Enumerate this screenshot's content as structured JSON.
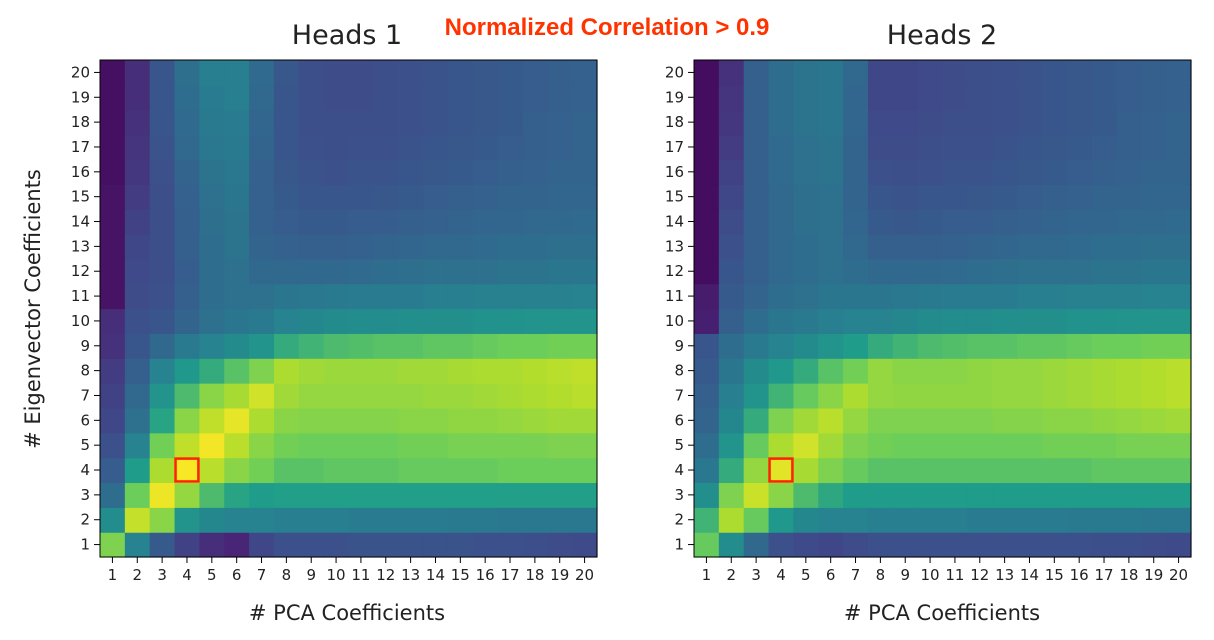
{
  "annotation": {
    "text": "Normalized Correlation > 0.9",
    "color": "#ff3300"
  },
  "colormap": [
    "#440154",
    "#482777",
    "#3f4a8a",
    "#31678e",
    "#26838f",
    "#1f9d8a",
    "#6cce5a",
    "#b6de2b",
    "#fee825"
  ],
  "highlight_color": "#ff2200",
  "chart_data": [
    {
      "type": "heatmap",
      "title": "Heads 1",
      "xlabel": "# PCA Coefficients",
      "ylabel": "# Eigenvector Coefficients",
      "x": [
        1,
        2,
        3,
        4,
        5,
        6,
        7,
        8,
        9,
        10,
        11,
        12,
        13,
        14,
        15,
        16,
        17,
        18,
        19,
        20
      ],
      "y": [
        1,
        2,
        3,
        4,
        5,
        6,
        7,
        8,
        9,
        10,
        11,
        12,
        13,
        14,
        15,
        16,
        17,
        18,
        19,
        20
      ],
      "value_range": [
        0,
        1
      ],
      "highlight": {
        "x": 4,
        "y": 4
      },
      "z_rows_from_y1": [
        [
          0.78,
          0.5,
          0.32,
          0.22,
          0.15,
          0.12,
          0.24,
          0.28,
          0.28,
          0.28,
          0.29,
          0.29,
          0.29,
          0.29,
          0.29,
          0.28,
          0.28,
          0.27,
          0.26,
          0.25
        ],
        [
          0.55,
          0.9,
          0.8,
          0.58,
          0.52,
          0.5,
          0.5,
          0.48,
          0.48,
          0.48,
          0.47,
          0.47,
          0.47,
          0.47,
          0.46,
          0.46,
          0.45,
          0.45,
          0.45,
          0.45
        ],
        [
          0.4,
          0.75,
          0.97,
          0.82,
          0.7,
          0.64,
          0.62,
          0.63,
          0.63,
          0.63,
          0.63,
          0.63,
          0.63,
          0.63,
          0.63,
          0.63,
          0.63,
          0.63,
          0.63,
          0.63
        ],
        [
          0.33,
          0.62,
          0.86,
          0.99,
          0.88,
          0.8,
          0.76,
          0.72,
          0.72,
          0.73,
          0.73,
          0.73,
          0.74,
          0.74,
          0.74,
          0.74,
          0.75,
          0.75,
          0.75,
          0.75
        ],
        [
          0.28,
          0.5,
          0.76,
          0.89,
          0.98,
          0.88,
          0.8,
          0.76,
          0.75,
          0.75,
          0.75,
          0.75,
          0.76,
          0.76,
          0.77,
          0.77,
          0.77,
          0.77,
          0.78,
          0.78
        ],
        [
          0.24,
          0.42,
          0.64,
          0.8,
          0.89,
          0.96,
          0.86,
          0.8,
          0.79,
          0.79,
          0.79,
          0.79,
          0.8,
          0.8,
          0.81,
          0.81,
          0.82,
          0.83,
          0.84,
          0.84
        ],
        [
          0.22,
          0.38,
          0.58,
          0.7,
          0.8,
          0.85,
          0.92,
          0.84,
          0.82,
          0.82,
          0.82,
          0.82,
          0.82,
          0.83,
          0.83,
          0.84,
          0.85,
          0.86,
          0.87,
          0.88
        ],
        [
          0.2,
          0.34,
          0.5,
          0.6,
          0.66,
          0.72,
          0.78,
          0.86,
          0.84,
          0.83,
          0.83,
          0.83,
          0.84,
          0.84,
          0.85,
          0.86,
          0.86,
          0.87,
          0.88,
          0.89
        ],
        [
          0.16,
          0.3,
          0.38,
          0.46,
          0.5,
          0.54,
          0.58,
          0.66,
          0.68,
          0.7,
          0.71,
          0.72,
          0.72,
          0.73,
          0.73,
          0.74,
          0.75,
          0.75,
          0.76,
          0.76
        ],
        [
          0.15,
          0.28,
          0.3,
          0.36,
          0.42,
          0.44,
          0.46,
          0.5,
          0.52,
          0.54,
          0.55,
          0.55,
          0.56,
          0.56,
          0.56,
          0.57,
          0.57,
          0.58,
          0.58,
          0.58
        ],
        [
          0.06,
          0.26,
          0.28,
          0.34,
          0.4,
          0.42,
          0.42,
          0.44,
          0.45,
          0.46,
          0.47,
          0.47,
          0.47,
          0.48,
          0.48,
          0.49,
          0.49,
          0.49,
          0.49,
          0.5
        ],
        [
          0.06,
          0.25,
          0.27,
          0.33,
          0.4,
          0.42,
          0.38,
          0.38,
          0.38,
          0.38,
          0.39,
          0.4,
          0.41,
          0.42,
          0.42,
          0.42,
          0.43,
          0.43,
          0.44,
          0.44
        ],
        [
          0.06,
          0.24,
          0.27,
          0.34,
          0.4,
          0.43,
          0.36,
          0.35,
          0.34,
          0.34,
          0.35,
          0.36,
          0.37,
          0.38,
          0.38,
          0.39,
          0.4,
          0.4,
          0.41,
          0.41
        ],
        [
          0.06,
          0.22,
          0.27,
          0.34,
          0.41,
          0.43,
          0.35,
          0.33,
          0.32,
          0.32,
          0.33,
          0.33,
          0.34,
          0.35,
          0.36,
          0.37,
          0.37,
          0.38,
          0.38,
          0.39
        ],
        [
          0.06,
          0.2,
          0.27,
          0.35,
          0.42,
          0.44,
          0.35,
          0.32,
          0.3,
          0.3,
          0.3,
          0.31,
          0.32,
          0.33,
          0.34,
          0.35,
          0.36,
          0.36,
          0.37,
          0.37
        ],
        [
          0.05,
          0.18,
          0.28,
          0.36,
          0.43,
          0.45,
          0.35,
          0.31,
          0.29,
          0.28,
          0.29,
          0.29,
          0.3,
          0.31,
          0.32,
          0.33,
          0.34,
          0.35,
          0.36,
          0.36
        ],
        [
          0.05,
          0.17,
          0.29,
          0.38,
          0.45,
          0.46,
          0.36,
          0.3,
          0.28,
          0.27,
          0.28,
          0.28,
          0.29,
          0.3,
          0.31,
          0.32,
          0.33,
          0.34,
          0.35,
          0.36
        ],
        [
          0.05,
          0.16,
          0.3,
          0.39,
          0.46,
          0.47,
          0.37,
          0.3,
          0.27,
          0.27,
          0.27,
          0.27,
          0.28,
          0.29,
          0.3,
          0.31,
          0.32,
          0.34,
          0.35,
          0.36
        ],
        [
          0.05,
          0.15,
          0.3,
          0.4,
          0.47,
          0.48,
          0.38,
          0.3,
          0.27,
          0.26,
          0.26,
          0.27,
          0.28,
          0.29,
          0.3,
          0.31,
          0.32,
          0.33,
          0.34,
          0.35
        ],
        [
          0.05,
          0.15,
          0.3,
          0.41,
          0.48,
          0.48,
          0.39,
          0.31,
          0.27,
          0.26,
          0.26,
          0.27,
          0.28,
          0.29,
          0.3,
          0.31,
          0.32,
          0.33,
          0.34,
          0.35
        ]
      ]
    },
    {
      "type": "heatmap",
      "title": "Heads 2",
      "xlabel": "# PCA Coefficients",
      "ylabel": "",
      "x": [
        1,
        2,
        3,
        4,
        5,
        6,
        7,
        8,
        9,
        10,
        11,
        12,
        13,
        14,
        15,
        16,
        17,
        18,
        19,
        20
      ],
      "y": [
        1,
        2,
        3,
        4,
        5,
        6,
        7,
        8,
        9,
        10,
        11,
        12,
        13,
        14,
        15,
        16,
        17,
        18,
        19,
        20
      ],
      "value_range": [
        0,
        1
      ],
      "highlight": {
        "x": 4,
        "y": 4
      },
      "z_rows_from_y1": [
        [
          0.74,
          0.55,
          0.38,
          0.28,
          0.25,
          0.24,
          0.26,
          0.28,
          0.28,
          0.28,
          0.28,
          0.28,
          0.28,
          0.28,
          0.28,
          0.28,
          0.27,
          0.27,
          0.26,
          0.25
        ],
        [
          0.68,
          0.86,
          0.74,
          0.6,
          0.52,
          0.5,
          0.5,
          0.48,
          0.48,
          0.48,
          0.48,
          0.47,
          0.47,
          0.47,
          0.47,
          0.46,
          0.46,
          0.46,
          0.45,
          0.45
        ],
        [
          0.56,
          0.78,
          0.91,
          0.8,
          0.7,
          0.65,
          0.62,
          0.62,
          0.62,
          0.62,
          0.62,
          0.62,
          0.62,
          0.62,
          0.62,
          0.62,
          0.62,
          0.62,
          0.62,
          0.62
        ],
        [
          0.45,
          0.66,
          0.82,
          0.95,
          0.85,
          0.78,
          0.74,
          0.72,
          0.72,
          0.72,
          0.72,
          0.72,
          0.72,
          0.72,
          0.72,
          0.72,
          0.73,
          0.73,
          0.73,
          0.73
        ],
        [
          0.4,
          0.58,
          0.74,
          0.86,
          0.92,
          0.84,
          0.78,
          0.76,
          0.75,
          0.75,
          0.75,
          0.75,
          0.75,
          0.75,
          0.76,
          0.76,
          0.76,
          0.77,
          0.77,
          0.77
        ],
        [
          0.36,
          0.52,
          0.66,
          0.78,
          0.84,
          0.88,
          0.82,
          0.78,
          0.78,
          0.78,
          0.78,
          0.78,
          0.79,
          0.79,
          0.8,
          0.8,
          0.81,
          0.82,
          0.83,
          0.84
        ],
        [
          0.34,
          0.48,
          0.58,
          0.68,
          0.74,
          0.8,
          0.86,
          0.82,
          0.81,
          0.81,
          0.81,
          0.81,
          0.82,
          0.82,
          0.83,
          0.84,
          0.85,
          0.86,
          0.87,
          0.88
        ],
        [
          0.32,
          0.44,
          0.54,
          0.6,
          0.66,
          0.72,
          0.76,
          0.82,
          0.8,
          0.8,
          0.8,
          0.81,
          0.82,
          0.82,
          0.83,
          0.84,
          0.85,
          0.86,
          0.87,
          0.88
        ],
        [
          0.3,
          0.4,
          0.46,
          0.5,
          0.54,
          0.58,
          0.62,
          0.66,
          0.68,
          0.7,
          0.71,
          0.72,
          0.72,
          0.73,
          0.73,
          0.74,
          0.75,
          0.75,
          0.76,
          0.76
        ],
        [
          0.1,
          0.34,
          0.4,
          0.44,
          0.46,
          0.48,
          0.5,
          0.5,
          0.52,
          0.54,
          0.55,
          0.55,
          0.56,
          0.56,
          0.56,
          0.57,
          0.57,
          0.58,
          0.58,
          0.58
        ],
        [
          0.09,
          0.32,
          0.36,
          0.4,
          0.42,
          0.44,
          0.44,
          0.44,
          0.45,
          0.46,
          0.47,
          0.47,
          0.47,
          0.48,
          0.48,
          0.49,
          0.49,
          0.49,
          0.5,
          0.5
        ],
        [
          0.04,
          0.3,
          0.34,
          0.38,
          0.4,
          0.42,
          0.4,
          0.38,
          0.38,
          0.38,
          0.39,
          0.4,
          0.41,
          0.42,
          0.42,
          0.42,
          0.43,
          0.43,
          0.44,
          0.44
        ],
        [
          0.04,
          0.28,
          0.34,
          0.38,
          0.4,
          0.42,
          0.38,
          0.34,
          0.34,
          0.34,
          0.35,
          0.36,
          0.37,
          0.38,
          0.38,
          0.39,
          0.4,
          0.4,
          0.41,
          0.41
        ],
        [
          0.04,
          0.26,
          0.34,
          0.38,
          0.41,
          0.42,
          0.37,
          0.32,
          0.31,
          0.32,
          0.33,
          0.33,
          0.34,
          0.35,
          0.36,
          0.37,
          0.37,
          0.38,
          0.38,
          0.39
        ],
        [
          0.04,
          0.24,
          0.34,
          0.38,
          0.41,
          0.42,
          0.36,
          0.3,
          0.29,
          0.3,
          0.3,
          0.31,
          0.32,
          0.33,
          0.34,
          0.35,
          0.36,
          0.36,
          0.37,
          0.37
        ],
        [
          0.04,
          0.22,
          0.34,
          0.39,
          0.42,
          0.43,
          0.36,
          0.28,
          0.27,
          0.28,
          0.29,
          0.29,
          0.3,
          0.31,
          0.32,
          0.33,
          0.34,
          0.35,
          0.36,
          0.36
        ],
        [
          0.04,
          0.2,
          0.34,
          0.39,
          0.42,
          0.43,
          0.36,
          0.26,
          0.26,
          0.27,
          0.28,
          0.28,
          0.29,
          0.3,
          0.31,
          0.32,
          0.33,
          0.34,
          0.35,
          0.36
        ],
        [
          0.04,
          0.18,
          0.34,
          0.4,
          0.43,
          0.44,
          0.37,
          0.25,
          0.25,
          0.26,
          0.27,
          0.27,
          0.28,
          0.29,
          0.3,
          0.31,
          0.32,
          0.34,
          0.35,
          0.36
        ],
        [
          0.04,
          0.17,
          0.34,
          0.4,
          0.43,
          0.44,
          0.37,
          0.24,
          0.24,
          0.25,
          0.26,
          0.27,
          0.28,
          0.29,
          0.3,
          0.31,
          0.32,
          0.33,
          0.34,
          0.35
        ],
        [
          0.04,
          0.16,
          0.34,
          0.4,
          0.43,
          0.44,
          0.38,
          0.24,
          0.24,
          0.25,
          0.26,
          0.27,
          0.28,
          0.29,
          0.3,
          0.31,
          0.32,
          0.33,
          0.34,
          0.35
        ]
      ]
    }
  ]
}
